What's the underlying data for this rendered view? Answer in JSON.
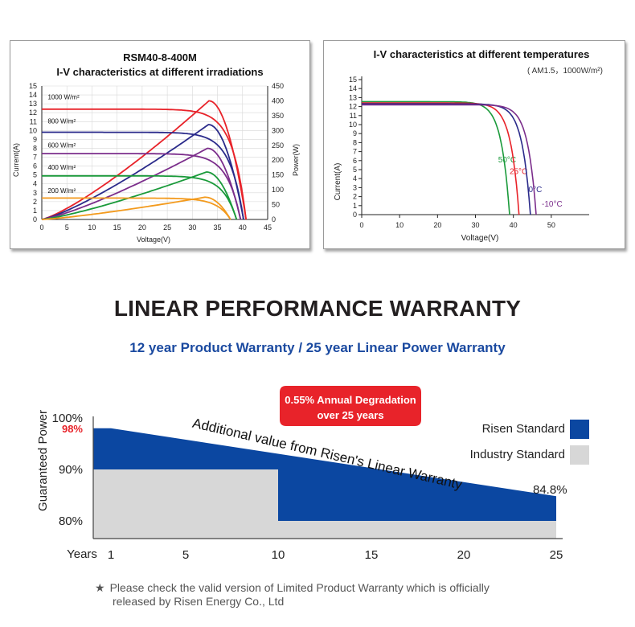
{
  "header": {
    "main_title": "LINEAR PERFORMANCE WARRANTY",
    "subtitle": "12 year Product Warranty / 25 year Linear Power Warranty"
  },
  "footnote": {
    "line1": "Please check the valid version of Limited Product Warranty which is officially",
    "line2": "released by Risen Energy Co., Ltd"
  },
  "chart_data": [
    {
      "type": "line",
      "title": "RSM40-8-400M",
      "subtitle": "I-V characteristics at different irradiations",
      "xlabel": "Voltage(V)",
      "ylabel": "Current(A)",
      "ylabel_right": "Power(W)",
      "xlim": [
        0,
        45
      ],
      "ylim": [
        0,
        15
      ],
      "ylim_right": [
        0,
        450
      ],
      "x_ticks": [
        0,
        5,
        10,
        15,
        20,
        25,
        30,
        35,
        40,
        45
      ],
      "y_ticks": [
        0,
        1,
        2,
        3,
        4,
        5,
        6,
        7,
        8,
        9,
        10,
        11,
        12,
        13,
        14,
        15
      ],
      "y_right_ticks": [
        0,
        50,
        100,
        150,
        200,
        250,
        300,
        350,
        400,
        450
      ],
      "series": [
        {
          "name": "1000 W/m²",
          "color": "#e8232a",
          "isc": 12.4,
          "voc": 40.7,
          "pmax": 400,
          "vmp": 33.3
        },
        {
          "name": "800 W/m²",
          "color": "#2a2a8a",
          "isc": 9.8,
          "voc": 40.2,
          "pmax": 320,
          "vmp": 33.2
        },
        {
          "name": "600 W/m²",
          "color": "#7b2d8b",
          "isc": 7.4,
          "voc": 39.6,
          "pmax": 240,
          "vmp": 33.0
        },
        {
          "name": "400 W/m²",
          "color": "#1a9a3a",
          "isc": 4.9,
          "voc": 38.8,
          "pmax": 160,
          "vmp": 32.8
        },
        {
          "name": "200 W/m²",
          "color": "#f39a1d",
          "isc": 2.4,
          "voc": 37.6,
          "pmax": 75,
          "vmp": 32.5
        }
      ]
    },
    {
      "type": "line",
      "title": "I-V characteristics at different temperatures",
      "note": "( AM1.5，1000W/m²)",
      "xlabel": "Voltage(V)",
      "ylabel": "Current(A)",
      "xlim": [
        0,
        60
      ],
      "ylim": [
        0,
        15
      ],
      "x_ticks": [
        0,
        10,
        20,
        30,
        40,
        50
      ],
      "y_ticks": [
        0,
        1,
        2,
        3,
        4,
        5,
        6,
        7,
        8,
        9,
        10,
        11,
        12,
        13,
        14,
        15
      ],
      "series": [
        {
          "name": "50°C",
          "color": "#1a9a3a",
          "isc": 12.55,
          "voc": 39.0
        },
        {
          "name": "25°C",
          "color": "#e8232a",
          "isc": 12.4,
          "voc": 41.5
        },
        {
          "name": "0°C",
          "color": "#2a2a8a",
          "isc": 12.3,
          "voc": 44.5
        },
        {
          "name": "-10°C",
          "color": "#7b2d8b",
          "isc": 12.2,
          "voc": 46.0
        }
      ]
    },
    {
      "type": "area",
      "ylabel": "Guaranteed Power",
      "xlabel": "Years",
      "x_ticks": [
        1,
        5,
        10,
        15,
        20,
        25
      ],
      "y_ticks": [
        "100%",
        "90%",
        "80%"
      ],
      "y_ticks_values": [
        100,
        90,
        80
      ],
      "highlight_tick": {
        "label": "98%",
        "value": 98,
        "color": "#e8232a"
      },
      "end_label": "84.8%",
      "callout": {
        "line1": "0.55% Annual Degradation",
        "line2": "over 25 years"
      },
      "arrow_text": "Additional value from Risen's Linear Warranty",
      "series": [
        {
          "name": "Risen Standard",
          "color": "#0b47a1",
          "points": [
            [
              0,
              98
            ],
            [
              1,
              98
            ],
            [
              25,
              84.8
            ]
          ]
        },
        {
          "name": "Industry Standard",
          "color": "#d7d7d7",
          "points": [
            [
              0,
              90
            ],
            [
              10,
              90
            ],
            [
              10,
              80
            ],
            [
              25,
              80
            ]
          ]
        }
      ]
    }
  ]
}
